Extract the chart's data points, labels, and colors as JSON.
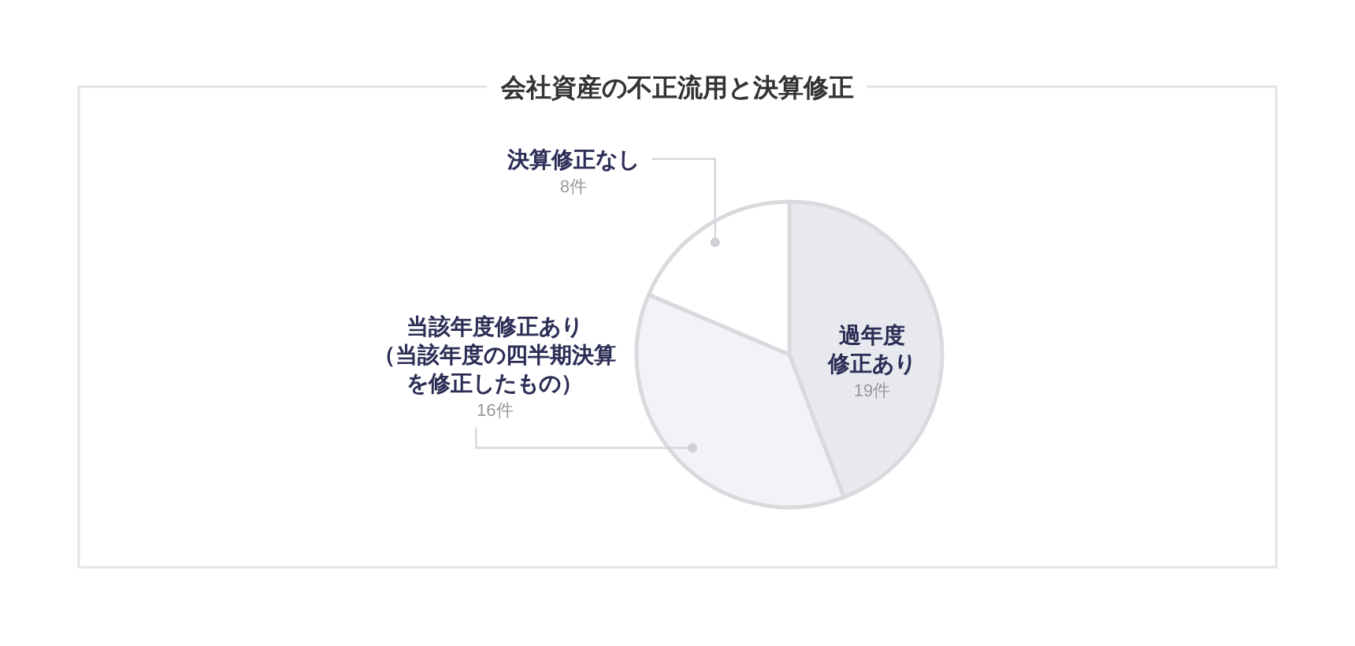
{
  "chart_data": {
    "type": "pie",
    "title": "会社資産の不正流用と決算修正",
    "categories": [
      "過年度修正あり",
      "当該年度修正あり（当該年度の四半期決算を修正したもの）",
      "決算修正なし"
    ],
    "values": [
      19,
      16,
      8
    ],
    "colors": [
      "#e8e8ef",
      "#f3f3f7",
      "#ffffff"
    ],
    "value_labels": [
      "19件",
      "16件",
      "8件"
    ]
  }
}
